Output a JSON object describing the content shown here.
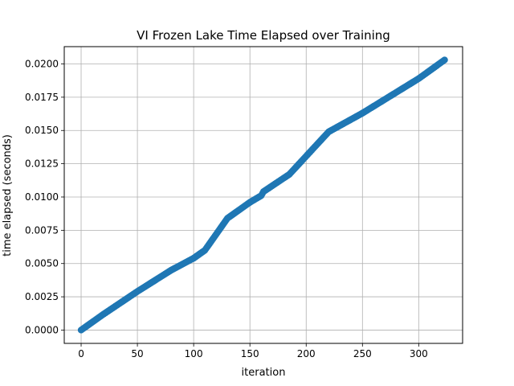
{
  "chart_data": {
    "type": "scatter",
    "title": "VI Frozen Lake Time Elapsed over Training",
    "xlabel": "iteration",
    "ylabel": "time elapsed (seconds)",
    "xlim": [
      -15,
      339
    ],
    "ylim": [
      -0.001,
      0.0213
    ],
    "xticks": [
      0,
      50,
      100,
      150,
      200,
      250,
      300
    ],
    "xtick_labels": [
      "0",
      "50",
      "100",
      "150",
      "200",
      "250",
      "300"
    ],
    "yticks": [
      0,
      0.0025,
      0.005,
      0.0075,
      0.01,
      0.0125,
      0.015,
      0.0175,
      0.02
    ],
    "ytick_labels": [
      "0.0000",
      "0.0025",
      "0.0050",
      "0.0075",
      "0.0100",
      "0.0125",
      "0.0150",
      "0.0175",
      "0.0200"
    ],
    "grid": true,
    "marker_color": "#1f77b4",
    "series": [
      {
        "points": [
          [
            0,
            0.0
          ],
          [
            10,
            0.0006
          ],
          [
            20,
            0.0012
          ],
          [
            50,
            0.0029
          ],
          [
            80,
            0.0045
          ],
          [
            100,
            0.0054
          ],
          [
            110,
            0.006
          ],
          [
            130,
            0.0084
          ],
          [
            150,
            0.0096
          ],
          [
            160,
            0.0101
          ],
          [
            162,
            0.0104
          ],
          [
            185,
            0.0117
          ],
          [
            220,
            0.0149
          ],
          [
            250,
            0.0163
          ],
          [
            300,
            0.0189
          ],
          [
            323,
            0.0203
          ]
        ]
      }
    ]
  }
}
